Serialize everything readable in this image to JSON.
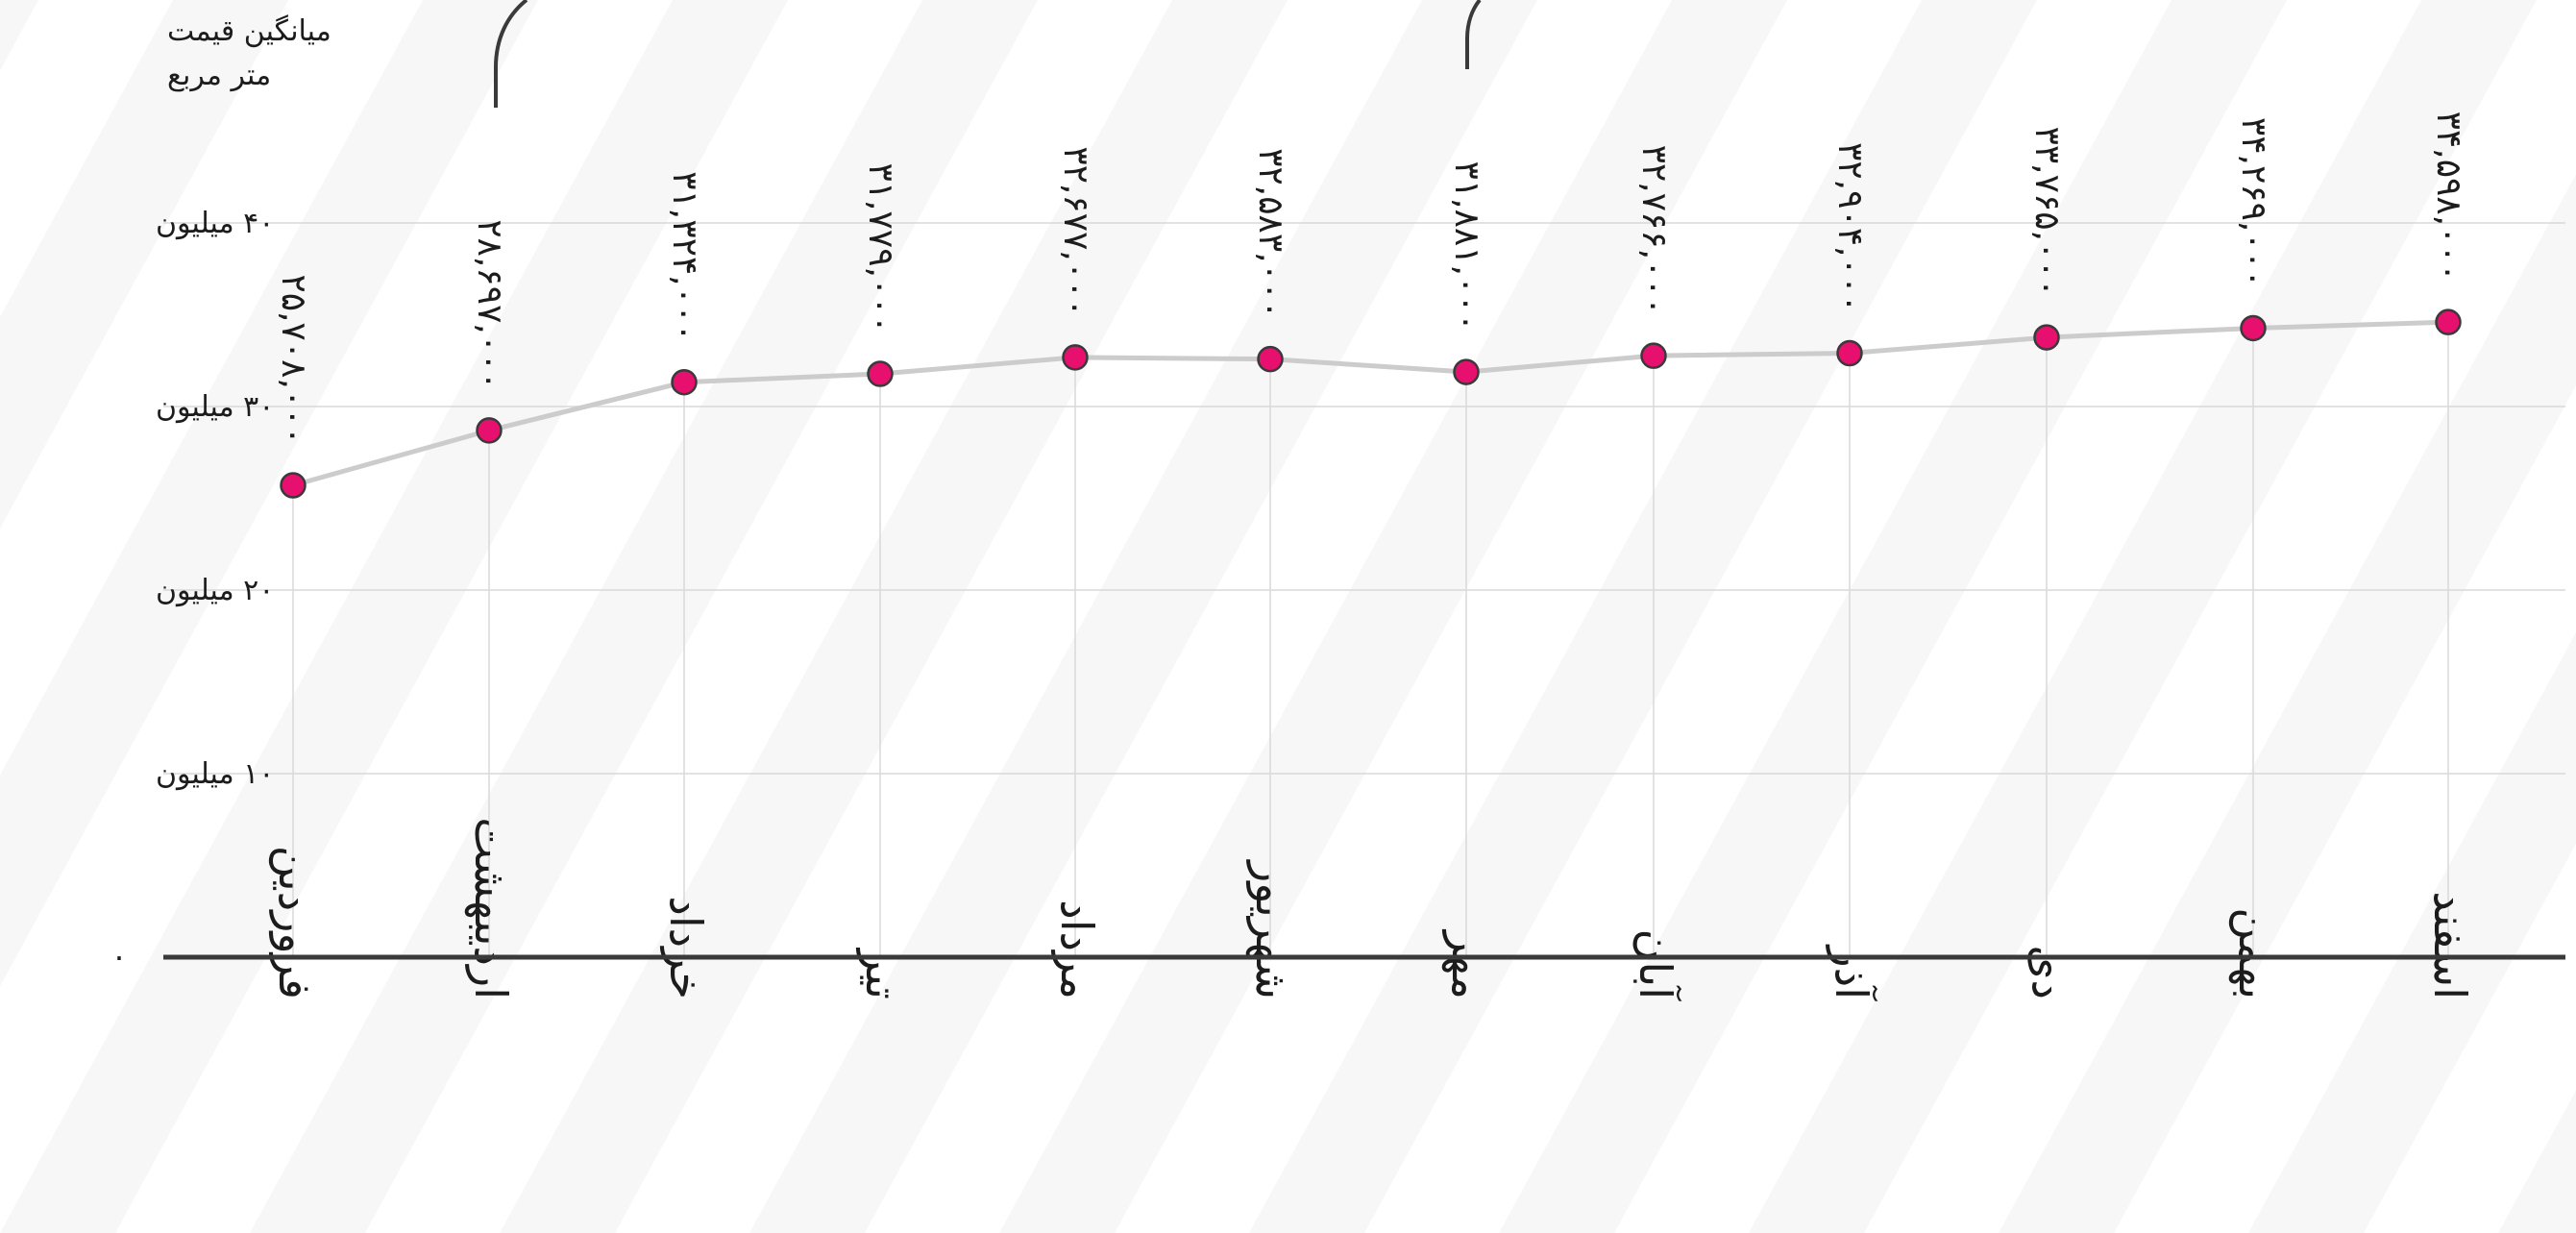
{
  "chart_data": {
    "type": "line",
    "ylabel": "میانگین قیمت متر مربع",
    "ylabel_lines": [
      "میانگین قیمت",
      "متر مربع"
    ],
    "ylim": [
      0,
      42000000
    ],
    "yticks": [
      {
        "value": 0,
        "label": "۰"
      },
      {
        "value": 10000000,
        "label": "۱۰ میلیون"
      },
      {
        "value": 20000000,
        "label": "۲۰ میلیون"
      },
      {
        "value": 30000000,
        "label": "۳۰ میلیون"
      },
      {
        "value": 40000000,
        "label": "۴۰ میلیون"
      }
    ],
    "categories": [
      "فروردین",
      "اردیبهشت",
      "خرداد",
      "تیر",
      "مرداد",
      "شهریور",
      "مهر",
      "آبان",
      "آذر",
      "دی",
      "بهمن",
      "اسفند"
    ],
    "values": [
      25708000,
      28697000,
      31324000,
      31779000,
      32677000,
      32583000,
      31881000,
      32766000,
      32904000,
      33765000,
      34269000,
      34598000
    ],
    "data_labels": [
      "۲۵,۷۰۸,۰۰۰",
      "۲۸,۶۹۷,۰۰۰",
      "۳۱,۳۲۴,۰۰۰",
      "۳۱,۷۷۹,۰۰۰",
      "۳۲,۶۷۷,۰۰۰",
      "۳۲,۵۸۳,۰۰۰",
      "۳۱,۸۸۱,۰۰۰",
      "۳۲,۷۶۶,۰۰۰",
      "۳۲,۹۰۴,۰۰۰",
      "۳۳,۷۶۵,۰۰۰",
      "۳۴,۲۶۹,۰۰۰",
      "۳۴,۵۹۸,۰۰۰"
    ],
    "grid": true,
    "colors": {
      "line": "#cccccc",
      "marker": "#e8106f",
      "marker_outline": "#3a3a3a",
      "grid": "#d9d9d9",
      "axis": "#3a3a3a",
      "text": "#1c1c1c"
    }
  }
}
